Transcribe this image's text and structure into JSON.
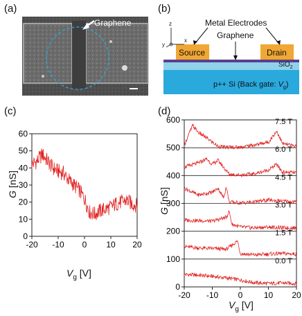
{
  "panel_labels": {
    "a": "(a)",
    "b": "(b)",
    "c": "(c)",
    "d": "(d)"
  },
  "panel_a": {
    "annotation": "Graphene"
  },
  "panel_b": {
    "metal_electrodes": "Metal Electrodes",
    "graphene": "Graphene",
    "source": "Source",
    "drain": "Drain",
    "oxide": "SiO",
    "oxide_sub": "2",
    "substrate": "p++ Si (Back gate: ",
    "substrate_var": "V",
    "substrate_var_sub": "g",
    "substrate_end": ")",
    "axis_z": "z",
    "axis_x": "x",
    "axis_y": "y",
    "colors": {
      "electrode": "#f0a733",
      "graphene": "#5a3f8f",
      "oxide": "#8fd2ea",
      "substrate": "#2aa9dd"
    }
  },
  "chart_data": [
    {
      "panel": "c",
      "type": "line",
      "xlabel_var": "V",
      "xlabel_sub": "g",
      "xlabel_unit": " [V]",
      "ylabel_var": "G",
      "ylabel_unit": " [nS]",
      "xlim": [
        -20,
        20
      ],
      "ylim": [
        0,
        60
      ],
      "x_ticks": [
        -20,
        -10,
        0,
        10,
        20
      ],
      "y_ticks": [
        0,
        10,
        20,
        30,
        40,
        50,
        60
      ],
      "line_color": "#e02020",
      "series": [
        {
          "x": [
            -20,
            -18,
            -16,
            -14,
            -12,
            -10,
            -8,
            -6,
            -4,
            -2,
            0,
            2,
            4,
            6,
            8,
            10,
            12,
            14,
            16,
            18,
            20
          ],
          "values": [
            42,
            44,
            48,
            44,
            40,
            38,
            37,
            33,
            30,
            27,
            22,
            14,
            13,
            15,
            16,
            17,
            19,
            20,
            21,
            19,
            18
          ]
        }
      ]
    },
    {
      "panel": "d",
      "type": "line",
      "xlabel_var": "V",
      "xlabel_sub": "g",
      "xlabel_unit": " [V]",
      "ylabel_var": "G",
      "ylabel_unit": " [nS]",
      "xlim": [
        -20,
        20
      ],
      "ylim": [
        0,
        600
      ],
      "x_ticks": [
        -20,
        -10,
        0,
        10,
        20
      ],
      "y_ticks": [
        0,
        100,
        200,
        300,
        400,
        500,
        600
      ],
      "line_color": "#e02020",
      "series": [
        {
          "name": "0.0 T",
          "baseline": 0,
          "x": [
            -20,
            -15,
            -10,
            -5,
            0,
            5,
            10,
            15,
            20
          ],
          "values": [
            45,
            42,
            38,
            32,
            25,
            15,
            12,
            14,
            12
          ]
        },
        {
          "name": "1.5 T",
          "baseline": 100,
          "x": [
            -20,
            -15,
            -10,
            -5,
            -1,
            0,
            5,
            10,
            15,
            20
          ],
          "values": [
            145,
            140,
            138,
            135,
            165,
            120,
            115,
            118,
            120,
            118
          ]
        },
        {
          "name": "3.0 T",
          "baseline": 200,
          "x": [
            -20,
            -15,
            -10,
            -5,
            -4,
            -3,
            0,
            5,
            10,
            15,
            20
          ],
          "values": [
            240,
            238,
            236,
            250,
            272,
            225,
            215,
            212,
            215,
            212,
            212
          ]
        },
        {
          "name": "4.5 T",
          "baseline": 300,
          "x": [
            -20,
            -15,
            -10,
            -8,
            -6,
            -5,
            -4,
            0,
            5,
            10,
            15,
            20
          ],
          "values": [
            355,
            330,
            340,
            355,
            320,
            360,
            305,
            302,
            305,
            312,
            308,
            305
          ]
        },
        {
          "name": "6.0 T",
          "baseline": 400,
          "x": [
            -20,
            -15,
            -12,
            -10,
            -8,
            -6,
            -4,
            0,
            5,
            10,
            13,
            15,
            20
          ],
          "values": [
            430,
            445,
            460,
            440,
            455,
            430,
            405,
            402,
            406,
            420,
            440,
            412,
            410
          ]
        },
        {
          "name": "7.5 T",
          "baseline": 500,
          "x": [
            -20,
            -17,
            -15,
            -12,
            -10,
            -8,
            -6,
            -4,
            0,
            5,
            10,
            13,
            15,
            20
          ],
          "values": [
            510,
            580,
            555,
            535,
            520,
            505,
            502,
            502,
            502,
            510,
            520,
            560,
            515,
            505
          ]
        }
      ]
    }
  ]
}
